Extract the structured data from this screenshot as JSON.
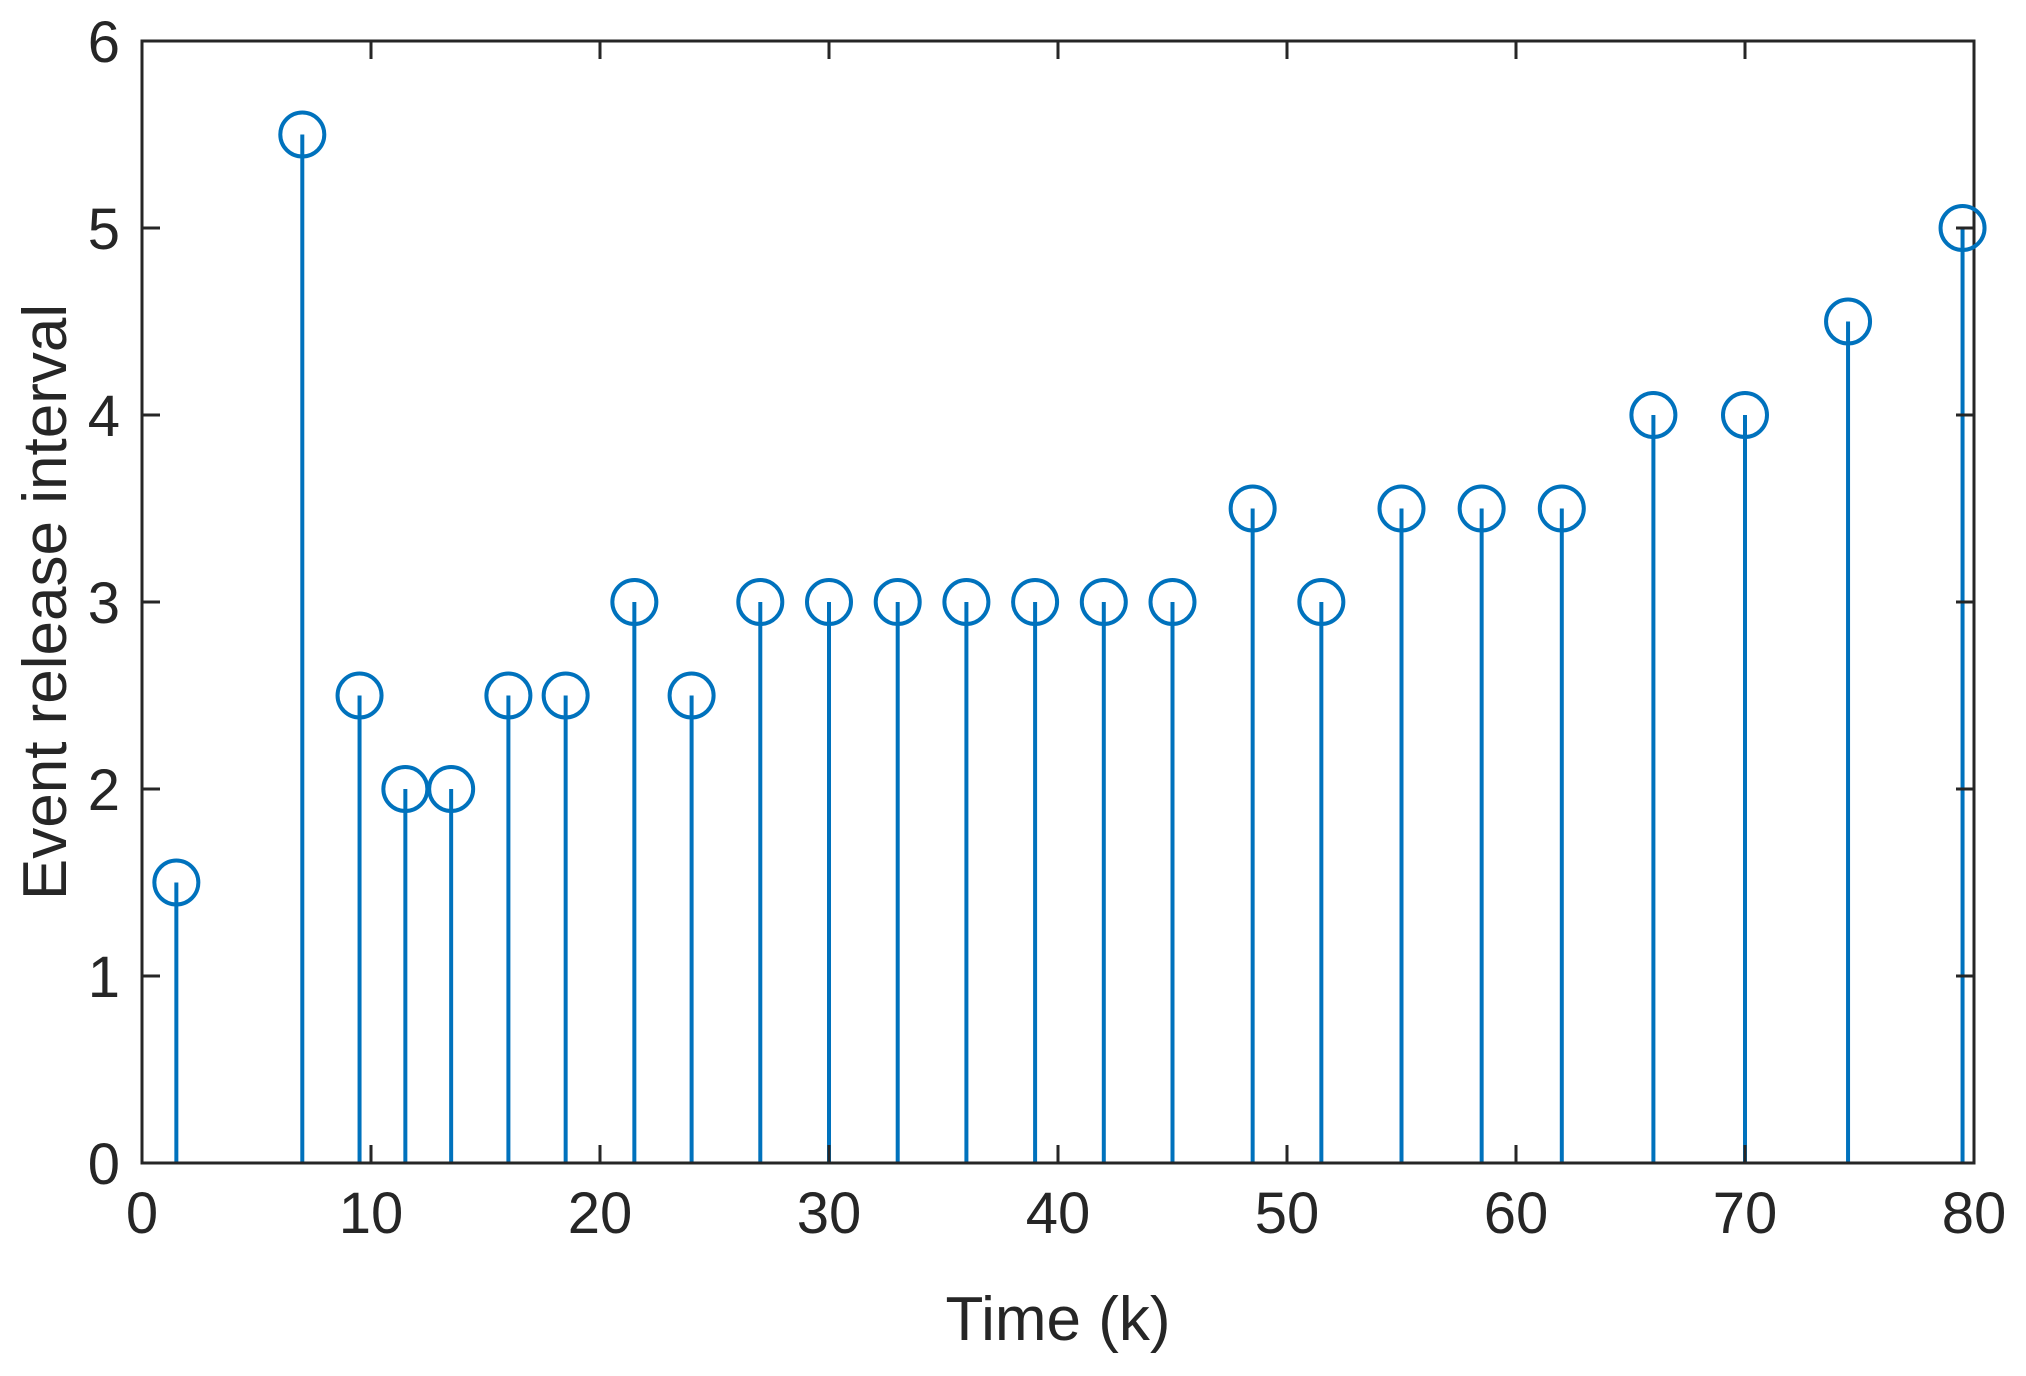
{
  "chart_data": {
    "type": "stem",
    "title": "",
    "xlabel": "Time (k)",
    "ylabel": "Event release interval",
    "xlim": [
      0,
      80
    ],
    "ylim": [
      0,
      6
    ],
    "xticks": [
      0,
      10,
      20,
      30,
      40,
      50,
      60,
      70,
      80
    ],
    "yticks": [
      0,
      1,
      2,
      3,
      4,
      5,
      6
    ],
    "grid": false,
    "legend": "none",
    "series": [
      {
        "color": "#0072BD",
        "marker": "circle-open",
        "points": [
          {
            "x": 1.5,
            "y": 1.5
          },
          {
            "x": 7,
            "y": 5.5
          },
          {
            "x": 9.5,
            "y": 2.5
          },
          {
            "x": 11.5,
            "y": 2
          },
          {
            "x": 13.5,
            "y": 2
          },
          {
            "x": 16,
            "y": 2.5
          },
          {
            "x": 18.5,
            "y": 2.5
          },
          {
            "x": 21.5,
            "y": 3
          },
          {
            "x": 24,
            "y": 2.5
          },
          {
            "x": 27,
            "y": 3
          },
          {
            "x": 30,
            "y": 3
          },
          {
            "x": 33,
            "y": 3
          },
          {
            "x": 36,
            "y": 3
          },
          {
            "x": 39,
            "y": 3
          },
          {
            "x": 42,
            "y": 3
          },
          {
            "x": 45,
            "y": 3
          },
          {
            "x": 48.5,
            "y": 3.5
          },
          {
            "x": 51.5,
            "y": 3
          },
          {
            "x": 55,
            "y": 3.5
          },
          {
            "x": 58.5,
            "y": 3.5
          },
          {
            "x": 62,
            "y": 3.5
          },
          {
            "x": 66,
            "y": 4
          },
          {
            "x": 70,
            "y": 4
          },
          {
            "x": 74.5,
            "y": 4.5
          },
          {
            "x": 79.5,
            "y": 5
          }
        ]
      }
    ],
    "axis_color": "#262626"
  }
}
